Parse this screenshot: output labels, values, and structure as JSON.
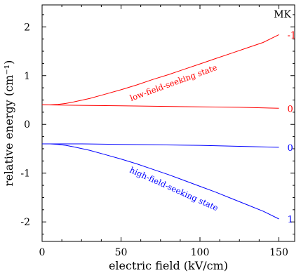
{
  "chart_data": {
    "type": "line",
    "xlabel": "electric field (kV/cm)",
    "ylabel": "relative energy (cm⁻¹)",
    "xlim": [
      0,
      160
    ],
    "ylim": [
      -2.4,
      2.45
    ],
    "xticks": [
      0,
      50,
      100,
      150
    ],
    "yticks": [
      -2,
      -1,
      0,
      1,
      2
    ],
    "grid": false,
    "legend_title": "MK",
    "series": [
      {
        "name": "-1",
        "color": "#ff0000",
        "x": [
          0,
          5,
          10,
          15,
          20,
          30,
          40,
          50,
          60,
          70,
          80,
          90,
          100,
          110,
          120,
          130,
          140,
          150
        ],
        "y": [
          0.4,
          0.4,
          0.41,
          0.43,
          0.46,
          0.53,
          0.62,
          0.71,
          0.81,
          0.92,
          1.02,
          1.13,
          1.24,
          1.35,
          1.46,
          1.57,
          1.68,
          1.84
        ]
      },
      {
        "name": "0",
        "color": "#ff0000",
        "x": [
          0,
          25,
          50,
          75,
          100,
          125,
          150
        ],
        "y": [
          0.4,
          0.39,
          0.38,
          0.37,
          0.36,
          0.35,
          0.33
        ]
      },
      {
        "name": "0",
        "color": "#0000ff",
        "x": [
          0,
          25,
          50,
          75,
          100,
          125,
          150
        ],
        "y": [
          -0.4,
          -0.4,
          -0.41,
          -0.42,
          -0.43,
          -0.45,
          -0.47
        ]
      },
      {
        "name": "1",
        "color": "#0000ff",
        "x": [
          0,
          5,
          10,
          15,
          20,
          30,
          40,
          50,
          60,
          70,
          80,
          90,
          100,
          110,
          120,
          130,
          140,
          150
        ],
        "y": [
          -0.4,
          -0.4,
          -0.41,
          -0.43,
          -0.46,
          -0.53,
          -0.62,
          -0.71,
          -0.81,
          -0.92,
          -1.03,
          -1.15,
          -1.27,
          -1.39,
          -1.52,
          -1.65,
          -1.78,
          -1.94
        ]
      }
    ],
    "annotations": [
      {
        "text": "low-field-seeking state",
        "color": "#ff0000"
      },
      {
        "text": "high-field-seeking state",
        "color": "#0000ff"
      }
    ]
  }
}
